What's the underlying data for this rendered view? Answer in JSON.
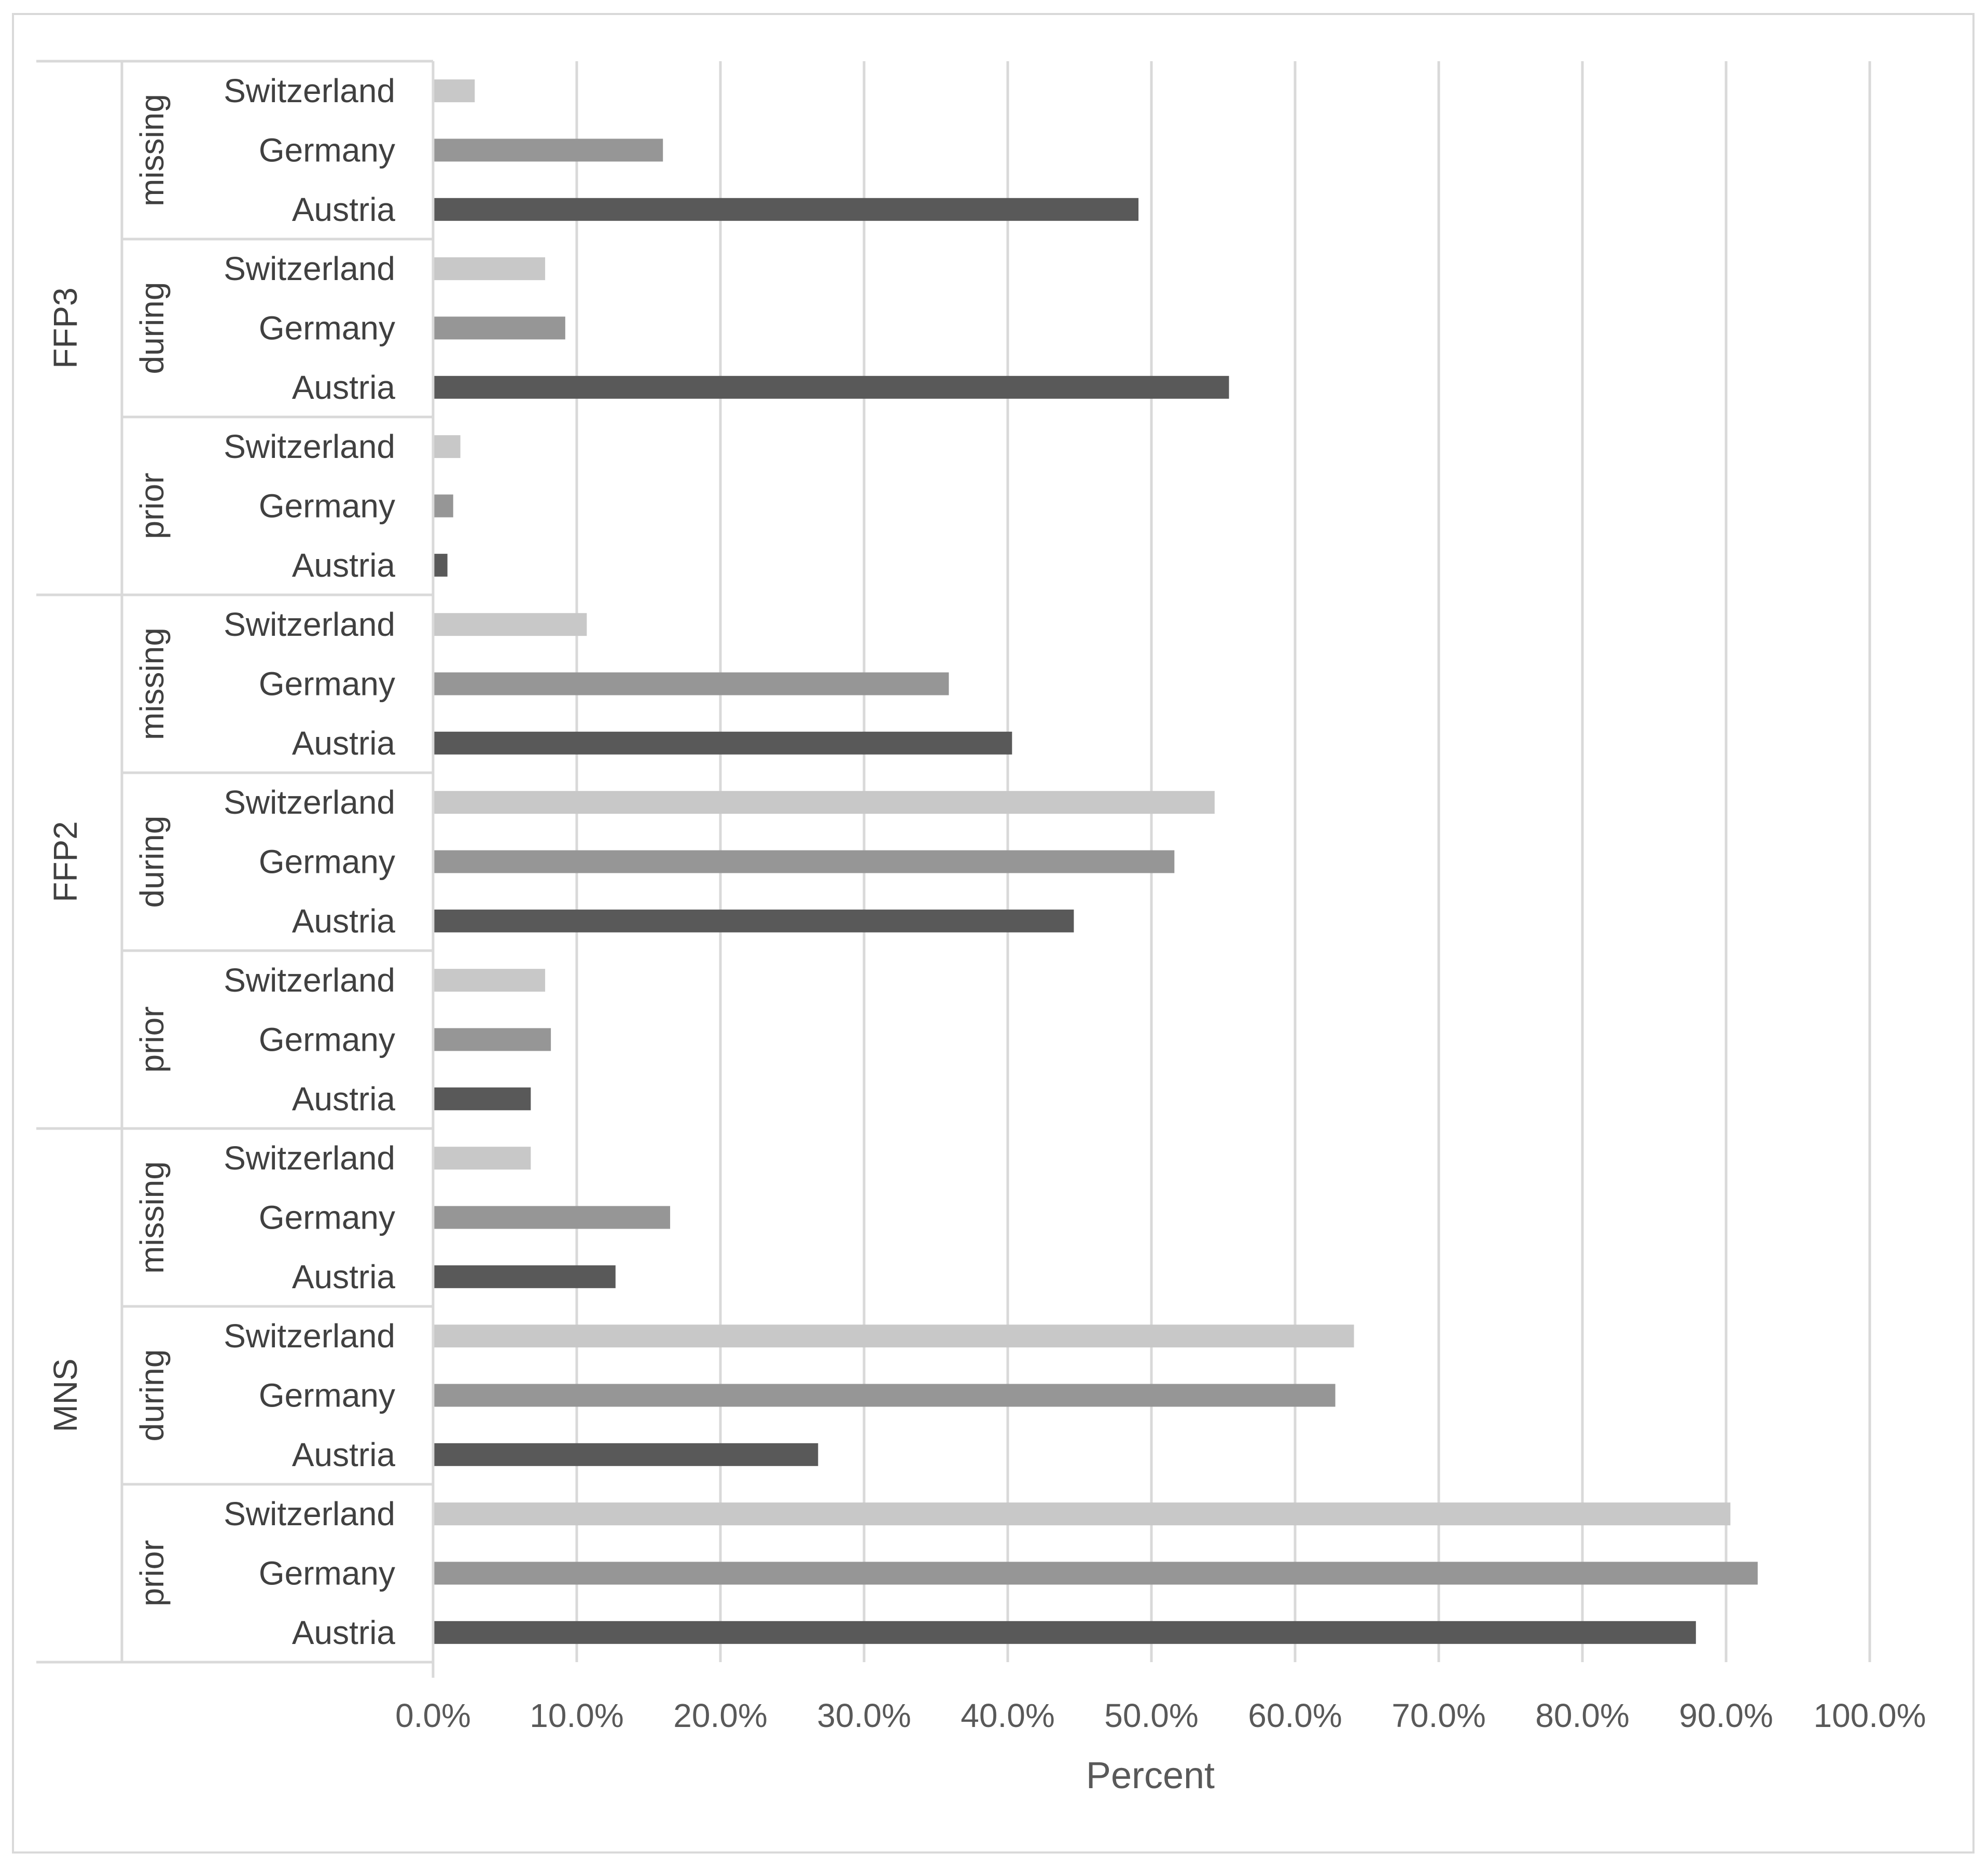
{
  "chart_data": {
    "type": "bar",
    "orientation": "horizontal",
    "xlabel": "Percent",
    "ylabel": "",
    "xlim": [
      0,
      100
    ],
    "x_ticks": [
      "0.0%",
      "10.0%",
      "20.0%",
      "30.0%",
      "40.0%",
      "50.0%",
      "60.0%",
      "70.0%",
      "80.0%",
      "90.0%",
      "100.0%"
    ],
    "grid": "vertical",
    "legend": "none",
    "colors": {
      "Switzerland": "#c8c8c8",
      "Germany": "#969696",
      "Austria": "#595959",
      "gridline": "#d9d9d9",
      "frame": "#d9d9d9"
    },
    "groups": [
      {
        "mask": "FFP3",
        "subgroups": [
          {
            "timing": "missing",
            "bars": [
              {
                "country": "Switzerland",
                "value": 2.9
              },
              {
                "country": "Germany",
                "value": 16.0
              },
              {
                "country": "Austria",
                "value": 49.1
              }
            ]
          },
          {
            "timing": "during",
            "bars": [
              {
                "country": "Switzerland",
                "value": 7.8
              },
              {
                "country": "Germany",
                "value": 9.2
              },
              {
                "country": "Austria",
                "value": 55.4
              }
            ]
          },
          {
            "timing": "prior",
            "bars": [
              {
                "country": "Switzerland",
                "value": 1.9
              },
              {
                "country": "Germany",
                "value": 1.4
              },
              {
                "country": "Austria",
                "value": 1.0
              }
            ]
          }
        ]
      },
      {
        "mask": "FFP2",
        "subgroups": [
          {
            "timing": "missing",
            "bars": [
              {
                "country": "Switzerland",
                "value": 10.7
              },
              {
                "country": "Germany",
                "value": 35.9
              },
              {
                "country": "Austria",
                "value": 40.3
              }
            ]
          },
          {
            "timing": "during",
            "bars": [
              {
                "country": "Switzerland",
                "value": 54.4
              },
              {
                "country": "Germany",
                "value": 51.6
              },
              {
                "country": "Austria",
                "value": 44.6
              }
            ]
          },
          {
            "timing": "prior",
            "bars": [
              {
                "country": "Switzerland",
                "value": 7.8
              },
              {
                "country": "Germany",
                "value": 8.2
              },
              {
                "country": "Austria",
                "value": 6.8
              }
            ]
          }
        ]
      },
      {
        "mask": "MNS",
        "subgroups": [
          {
            "timing": "missing",
            "bars": [
              {
                "country": "Switzerland",
                "value": 6.8
              },
              {
                "country": "Germany",
                "value": 16.5
              },
              {
                "country": "Austria",
                "value": 12.7
              }
            ]
          },
          {
            "timing": "during",
            "bars": [
              {
                "country": "Switzerland",
                "value": 64.1
              },
              {
                "country": "Germany",
                "value": 62.8
              },
              {
                "country": "Austria",
                "value": 26.8
              }
            ]
          },
          {
            "timing": "prior",
            "bars": [
              {
                "country": "Switzerland",
                "value": 90.3
              },
              {
                "country": "Germany",
                "value": 92.2
              },
              {
                "country": "Austria",
                "value": 87.9
              }
            ]
          }
        ]
      }
    ]
  }
}
